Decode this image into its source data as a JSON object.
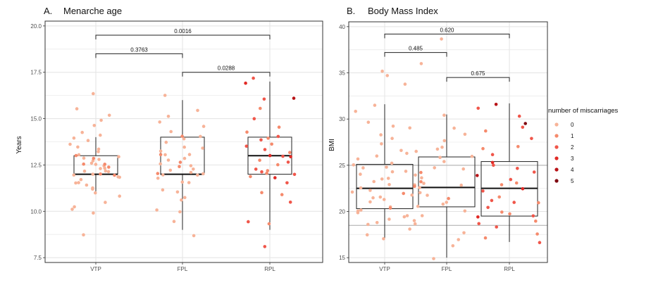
{
  "colors": {
    "miscarriages": [
      "#f7b398",
      "#f58a6c",
      "#f0564a",
      "#e12a26",
      "#b81317",
      "#7f0911"
    ],
    "ref_line": "#aaaaaa"
  },
  "legend": {
    "title": "number of miscarriages",
    "levels": [
      "0",
      "1",
      "2",
      "3",
      "4",
      "5"
    ]
  },
  "chart_data": [
    {
      "type": "box",
      "panel_label": "A.",
      "title": "Menarche age",
      "ylabel": "Years",
      "xlabel": "",
      "ylim": [
        7.5,
        20.0
      ],
      "yticks": [
        "7.5",
        "10.0",
        "12.5",
        "15.0",
        "17.5",
        "20.0"
      ],
      "ytick_values": [
        7.5,
        10.0,
        12.5,
        15.0,
        17.5,
        20.0
      ],
      "categories": [
        "VTP",
        "FPL",
        "RPL"
      ],
      "grid": true,
      "boxes": [
        {
          "group": "VTP",
          "min": 11.0,
          "q1": 12.0,
          "median": 12.0,
          "q3": 13.0,
          "max": 14.0
        },
        {
          "group": "FPL",
          "min": 9.0,
          "q1": 12.0,
          "median": 12.0,
          "q3": 14.0,
          "max": 16.0
        },
        {
          "group": "RPL",
          "min": 9.0,
          "q1": 12.0,
          "median": 13.0,
          "q3": 14.0,
          "max": 17.0
        }
      ],
      "comparisons": [
        {
          "groups": [
            "VTP",
            "RPL"
          ],
          "p": "0.0016",
          "y": 19.5
        },
        {
          "groups": [
            "VTP",
            "FPL"
          ],
          "p": "0.3763",
          "y": 18.5
        },
        {
          "groups": [
            "FPL",
            "RPL"
          ],
          "p": "0.0288",
          "y": 17.5
        }
      ],
      "points": {
        "VTP": [
          [
            11,
            0
          ],
          [
            11.5,
            0
          ],
          [
            12,
            0
          ],
          [
            12,
            0
          ],
          [
            12,
            1
          ],
          [
            12.2,
            0
          ],
          [
            12.4,
            0
          ],
          [
            12.5,
            0
          ],
          [
            12.5,
            1
          ],
          [
            12.8,
            0
          ],
          [
            13,
            0
          ],
          [
            13,
            0
          ],
          [
            13,
            1
          ],
          [
            11.8,
            0
          ],
          [
            12.6,
            0
          ],
          [
            12.3,
            0
          ],
          [
            11.6,
            0
          ],
          [
            12.7,
            0
          ],
          [
            13.2,
            0
          ],
          [
            13.5,
            0
          ],
          [
            13.8,
            0
          ],
          [
            14,
            0
          ],
          [
            14.3,
            0
          ],
          [
            14.6,
            0
          ],
          [
            14.9,
            0
          ],
          [
            15.2,
            0
          ],
          [
            15.5,
            0
          ],
          [
            16.3,
            0
          ],
          [
            10.1,
            0
          ],
          [
            10.5,
            0
          ],
          [
            10.8,
            0
          ],
          [
            11.2,
            0
          ],
          [
            11.3,
            0
          ],
          [
            9.9,
            0
          ],
          [
            8.7,
            0
          ],
          [
            12.1,
            0
          ],
          [
            12.9,
            0
          ],
          [
            12.0,
            1
          ],
          [
            11.9,
            0
          ],
          [
            12.4,
            1
          ],
          [
            13.3,
            0
          ],
          [
            11.4,
            0
          ],
          [
            11.7,
            0
          ],
          [
            12.2,
            0
          ],
          [
            12.6,
            1
          ],
          [
            13.6,
            0
          ],
          [
            14.1,
            0
          ],
          [
            10.3,
            0
          ],
          [
            12.9,
            1
          ],
          [
            12.3,
            0
          ]
        ],
        "FPL": [
          [
            12,
            0
          ],
          [
            12,
            0
          ],
          [
            12,
            1
          ],
          [
            12.3,
            0
          ],
          [
            12.5,
            0
          ],
          [
            12.8,
            0
          ],
          [
            13,
            0
          ],
          [
            13,
            1
          ],
          [
            13.5,
            0
          ],
          [
            14,
            0
          ],
          [
            14,
            1
          ],
          [
            14.3,
            0
          ],
          [
            14.8,
            0
          ],
          [
            15.1,
            0
          ],
          [
            15.4,
            0
          ],
          [
            16.2,
            0
          ],
          [
            11.5,
            0
          ],
          [
            11,
            0
          ],
          [
            10.6,
            0
          ],
          [
            10.1,
            0
          ],
          [
            10.0,
            0
          ],
          [
            9.5,
            0
          ],
          [
            8.7,
            0
          ],
          [
            12.2,
            0
          ],
          [
            12.6,
            0
          ],
          [
            13.2,
            0
          ],
          [
            13.7,
            0
          ],
          [
            11.8,
            0
          ],
          [
            12.4,
            1
          ],
          [
            12.9,
            0
          ],
          [
            13.9,
            0
          ],
          [
            11.2,
            0
          ],
          [
            12.1,
            0
          ],
          [
            14.6,
            0
          ],
          [
            12.7,
            1
          ],
          [
            13.4,
            0
          ],
          [
            11.6,
            0
          ],
          [
            12.0,
            0
          ],
          [
            10.8,
            0
          ],
          [
            13.1,
            0
          ]
        ],
        "RPL": [
          [
            12,
            1
          ],
          [
            12,
            2
          ],
          [
            12.5,
            1
          ],
          [
            13,
            2
          ],
          [
            13,
            3
          ],
          [
            13.2,
            1
          ],
          [
            13.5,
            2
          ],
          [
            14,
            1
          ],
          [
            14,
            2
          ],
          [
            14.5,
            1
          ],
          [
            15,
            2
          ],
          [
            15.5,
            1
          ],
          [
            16.1,
            4
          ],
          [
            16.9,
            3
          ],
          [
            17.2,
            2
          ],
          [
            12.3,
            2
          ],
          [
            12.8,
            1
          ],
          [
            11.8,
            3
          ],
          [
            11.5,
            2
          ],
          [
            11.0,
            1
          ],
          [
            10.5,
            2
          ],
          [
            9.4,
            2
          ],
          [
            9.3,
            1
          ],
          [
            8.1,
            2
          ],
          [
            13.8,
            2
          ],
          [
            14.3,
            1
          ],
          [
            12.2,
            1
          ],
          [
            12.9,
            3
          ],
          [
            13.3,
            2
          ],
          [
            16.0,
            2
          ],
          [
            11.9,
            1
          ],
          [
            12.6,
            2
          ],
          [
            13.6,
            1
          ],
          [
            12.1,
            2
          ],
          [
            10.9,
            1
          ]
        ]
      }
    },
    {
      "type": "box",
      "panel_label": "B.",
      "title": "Body Mass Index",
      "ylabel": "BMI",
      "xlabel": "",
      "ylim": [
        15,
        40
      ],
      "yticks": [
        "15",
        "20",
        "25",
        "30",
        "35",
        "40"
      ],
      "ytick_values": [
        15,
        20,
        25,
        30,
        35,
        40
      ],
      "categories": [
        "VTP",
        "FPL",
        "RPL"
      ],
      "grid": true,
      "ref_lines": [
        18.5,
        25
      ],
      "boxes": [
        {
          "group": "VTP",
          "min": 17.0,
          "q1": 20.3,
          "median": 22.5,
          "q3": 25.1,
          "max": 31.6
        },
        {
          "group": "FPL",
          "min": 15.0,
          "q1": 20.5,
          "median": 22.6,
          "q3": 25.9,
          "max": 30.5
        },
        {
          "group": "RPL",
          "min": 16.7,
          "q1": 19.5,
          "median": 22.5,
          "q3": 25.4,
          "max": 31.7
        }
      ],
      "comparisons": [
        {
          "groups": [
            "VTP",
            "RPL"
          ],
          "p": "0.620",
          "y": 39.2
        },
        {
          "groups": [
            "VTP",
            "FPL"
          ],
          "p": "0.485",
          "y": 37.2
        },
        {
          "groups": [
            "FPL",
            "RPL"
          ],
          "p": "0.675",
          "y": 34.5
        }
      ],
      "points": {
        "VTP": [
          [
            17.5,
            0
          ],
          [
            18.2,
            0
          ],
          [
            18.9,
            0
          ],
          [
            19.4,
            0
          ],
          [
            19.8,
            0
          ],
          [
            20.2,
            0
          ],
          [
            20.6,
            0
          ],
          [
            21.0,
            0
          ],
          [
            21.4,
            0
          ],
          [
            21.8,
            0
          ],
          [
            22.0,
            1
          ],
          [
            22.3,
            0
          ],
          [
            22.6,
            0
          ],
          [
            22.9,
            0
          ],
          [
            23.2,
            0
          ],
          [
            23.6,
            0
          ],
          [
            24.0,
            0
          ],
          [
            24.4,
            0
          ],
          [
            24.8,
            0
          ],
          [
            25.2,
            0
          ],
          [
            25.6,
            0
          ],
          [
            26.1,
            0
          ],
          [
            26.7,
            0
          ],
          [
            27.4,
            0
          ],
          [
            28.2,
            0
          ],
          [
            29.0,
            0
          ],
          [
            29.6,
            0
          ],
          [
            30.8,
            0
          ],
          [
            31.6,
            0
          ],
          [
            33.8,
            0
          ],
          [
            34.6,
            0
          ],
          [
            35.1,
            0
          ],
          [
            17.0,
            0
          ],
          [
            18.6,
            0
          ],
          [
            19.1,
            0
          ],
          [
            20.4,
            1
          ],
          [
            21.2,
            0
          ],
          [
            22.1,
            0
          ],
          [
            23.4,
            0
          ],
          [
            24.2,
            0
          ],
          [
            20.0,
            0
          ],
          [
            21.6,
            0
          ],
          [
            22.8,
            1
          ],
          [
            24.6,
            0
          ],
          [
            26.4,
            0
          ],
          [
            19.6,
            0
          ],
          [
            23.0,
            0
          ],
          [
            25.0,
            0
          ],
          [
            27.8,
            0
          ],
          [
            29.2,
            0
          ]
        ],
        "FPL": [
          [
            15.0,
            0
          ],
          [
            16.2,
            0
          ],
          [
            17.0,
            0
          ],
          [
            18.6,
            0
          ],
          [
            19.5,
            0
          ],
          [
            20.5,
            0
          ],
          [
            21.0,
            0
          ],
          [
            21.5,
            1
          ],
          [
            22.0,
            0
          ],
          [
            22.5,
            0
          ],
          [
            23.0,
            0
          ],
          [
            23.6,
            0
          ],
          [
            24.2,
            1
          ],
          [
            24.8,
            0
          ],
          [
            25.4,
            0
          ],
          [
            26.0,
            0
          ],
          [
            26.8,
            0
          ],
          [
            27.6,
            0
          ],
          [
            28.3,
            0
          ],
          [
            29.0,
            0
          ],
          [
            30.5,
            0
          ],
          [
            36.0,
            0
          ],
          [
            38.6,
            0
          ],
          [
            20.1,
            0
          ],
          [
            21.8,
            0
          ],
          [
            23.2,
            1
          ],
          [
            24.5,
            0
          ],
          [
            25.8,
            0
          ],
          [
            19.0,
            0
          ],
          [
            22.8,
            0
          ],
          [
            26.5,
            0
          ],
          [
            20.8,
            0
          ],
          [
            24.0,
            0
          ],
          [
            27.0,
            0
          ],
          [
            17.6,
            0
          ]
        ],
        "RPL": [
          [
            16.7,
            2
          ],
          [
            17.5,
            1
          ],
          [
            18.3,
            2
          ],
          [
            19.0,
            1
          ],
          [
            19.5,
            2
          ],
          [
            20.0,
            1
          ],
          [
            20.5,
            2
          ],
          [
            21.0,
            2
          ],
          [
            21.6,
            1
          ],
          [
            22.2,
            2
          ],
          [
            22.8,
            1
          ],
          [
            23.4,
            2
          ],
          [
            24.0,
            4
          ],
          [
            24.6,
            2
          ],
          [
            25.4,
            3
          ],
          [
            26.2,
            2
          ],
          [
            27.0,
            1
          ],
          [
            27.8,
            2
          ],
          [
            28.6,
            1
          ],
          [
            29.6,
            5
          ],
          [
            30.2,
            2
          ],
          [
            31.1,
            2
          ],
          [
            31.7,
            4
          ],
          [
            19.3,
            3
          ],
          [
            21.2,
            2
          ],
          [
            23.0,
            1
          ],
          [
            25.0,
            2
          ],
          [
            26.8,
            1
          ],
          [
            18.7,
            2
          ],
          [
            22.5,
            3
          ],
          [
            20.9,
            1
          ],
          [
            24.3,
            2
          ],
          [
            29.0,
            2
          ],
          [
            17.1,
            1
          ],
          [
            19.8,
            1
          ]
        ]
      }
    }
  ]
}
